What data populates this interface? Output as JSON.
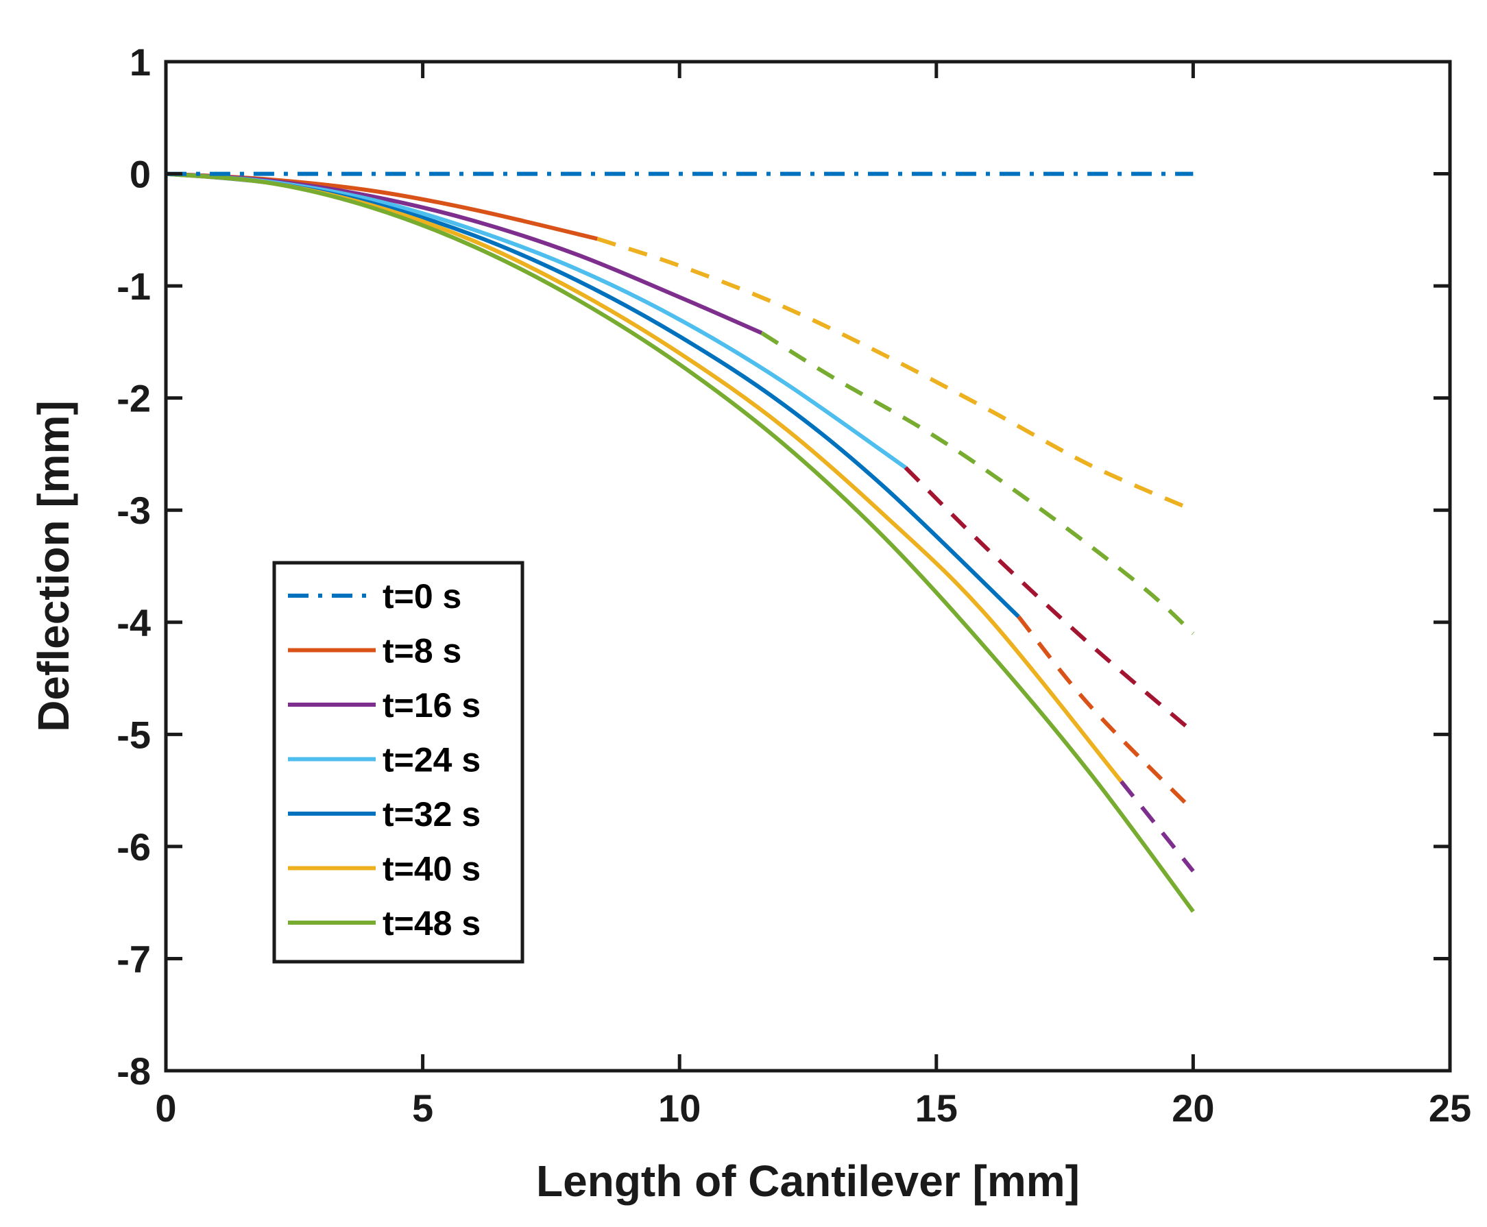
{
  "chart_data": {
    "type": "line",
    "xlabel": "Length of Cantilever [mm]",
    "ylabel": "Deflection [mm]",
    "xlim": [
      0,
      25
    ],
    "ylim": [
      -8,
      1
    ],
    "xticks": [
      0,
      5,
      10,
      15,
      20,
      25
    ],
    "yticks": [
      1,
      0,
      -1,
      -2,
      -3,
      -4,
      -5,
      -6,
      -7,
      -8
    ],
    "grid": false,
    "legend_position": "lower-left",
    "series": [
      {
        "name": "t=0 s",
        "color": "#0072BD",
        "style": "dashdot",
        "x": [
          0,
          5,
          10,
          15,
          20
        ],
        "y": [
          0,
          0,
          0,
          0,
          0
        ]
      },
      {
        "name": "t=8 s",
        "color": "#D95319",
        "style": "solid",
        "x": [
          0,
          2,
          4,
          6,
          8.4
        ],
        "y": [
          0,
          -0.05,
          -0.15,
          -0.32,
          -0.58
        ],
        "continuation": {
          "color": "#EDB120",
          "x": [
            8.4,
            10,
            12,
            14,
            16,
            18,
            20
          ],
          "y": [
            -0.58,
            -0.82,
            -1.18,
            -1.62,
            -2.1,
            -2.6,
            -3.0
          ]
        }
      },
      {
        "name": "t=16 s",
        "color": "#7E2F8E",
        "style": "solid",
        "x": [
          0,
          2,
          4,
          6,
          8,
          10,
          11.6
        ],
        "y": [
          0,
          -0.06,
          -0.2,
          -0.42,
          -0.72,
          -1.1,
          -1.42
        ],
        "continuation": {
          "color": "#77AC30",
          "x": [
            11.6,
            13,
            15,
            17,
            19,
            20
          ],
          "y": [
            -1.42,
            -1.82,
            -2.35,
            -2.98,
            -3.68,
            -4.1
          ]
        }
      },
      {
        "name": "t=24 s",
        "color": "#4DBEEE",
        "style": "solid",
        "x": [
          0,
          2,
          4,
          6,
          8,
          10,
          12,
          14.4
        ],
        "y": [
          0,
          -0.07,
          -0.23,
          -0.5,
          -0.85,
          -1.3,
          -1.85,
          -2.62
        ],
        "continuation": {
          "color": "#A2142F",
          "x": [
            14.4,
            16,
            18,
            20
          ],
          "y": [
            -2.62,
            -3.35,
            -4.2,
            -4.98
          ]
        }
      },
      {
        "name": "t=32 s",
        "color": "#0072BD",
        "style": "solid",
        "x": [
          0,
          2,
          4,
          6,
          8,
          10,
          12,
          14,
          16.6
        ],
        "y": [
          0,
          -0.08,
          -0.26,
          -0.55,
          -0.95,
          -1.45,
          -2.05,
          -2.8,
          -3.95
        ],
        "continuation": {
          "color": "#D95319",
          "x": [
            16.6,
            18,
            20
          ],
          "y": [
            -3.95,
            -4.75,
            -5.68
          ]
        }
      },
      {
        "name": "t=40 s",
        "color": "#EDB120",
        "style": "solid",
        "x": [
          0,
          2,
          4,
          6,
          8,
          10,
          12,
          14,
          16,
          18.6
        ],
        "y": [
          0,
          -0.08,
          -0.28,
          -0.6,
          -1.05,
          -1.6,
          -2.25,
          -3.05,
          -3.95,
          -5.42
        ],
        "continuation": {
          "color": "#7E2F8E",
          "x": [
            18.6,
            19.3,
            20
          ],
          "y": [
            -5.42,
            -5.82,
            -6.22
          ]
        }
      },
      {
        "name": "t=48 s",
        "color": "#77AC30",
        "style": "solid",
        "x": [
          0,
          2,
          4,
          6,
          8,
          10,
          12,
          14,
          16,
          18,
          20
        ],
        "y": [
          0,
          -0.08,
          -0.3,
          -0.65,
          -1.12,
          -1.7,
          -2.4,
          -3.25,
          -4.25,
          -5.35,
          -6.58
        ]
      }
    ]
  }
}
